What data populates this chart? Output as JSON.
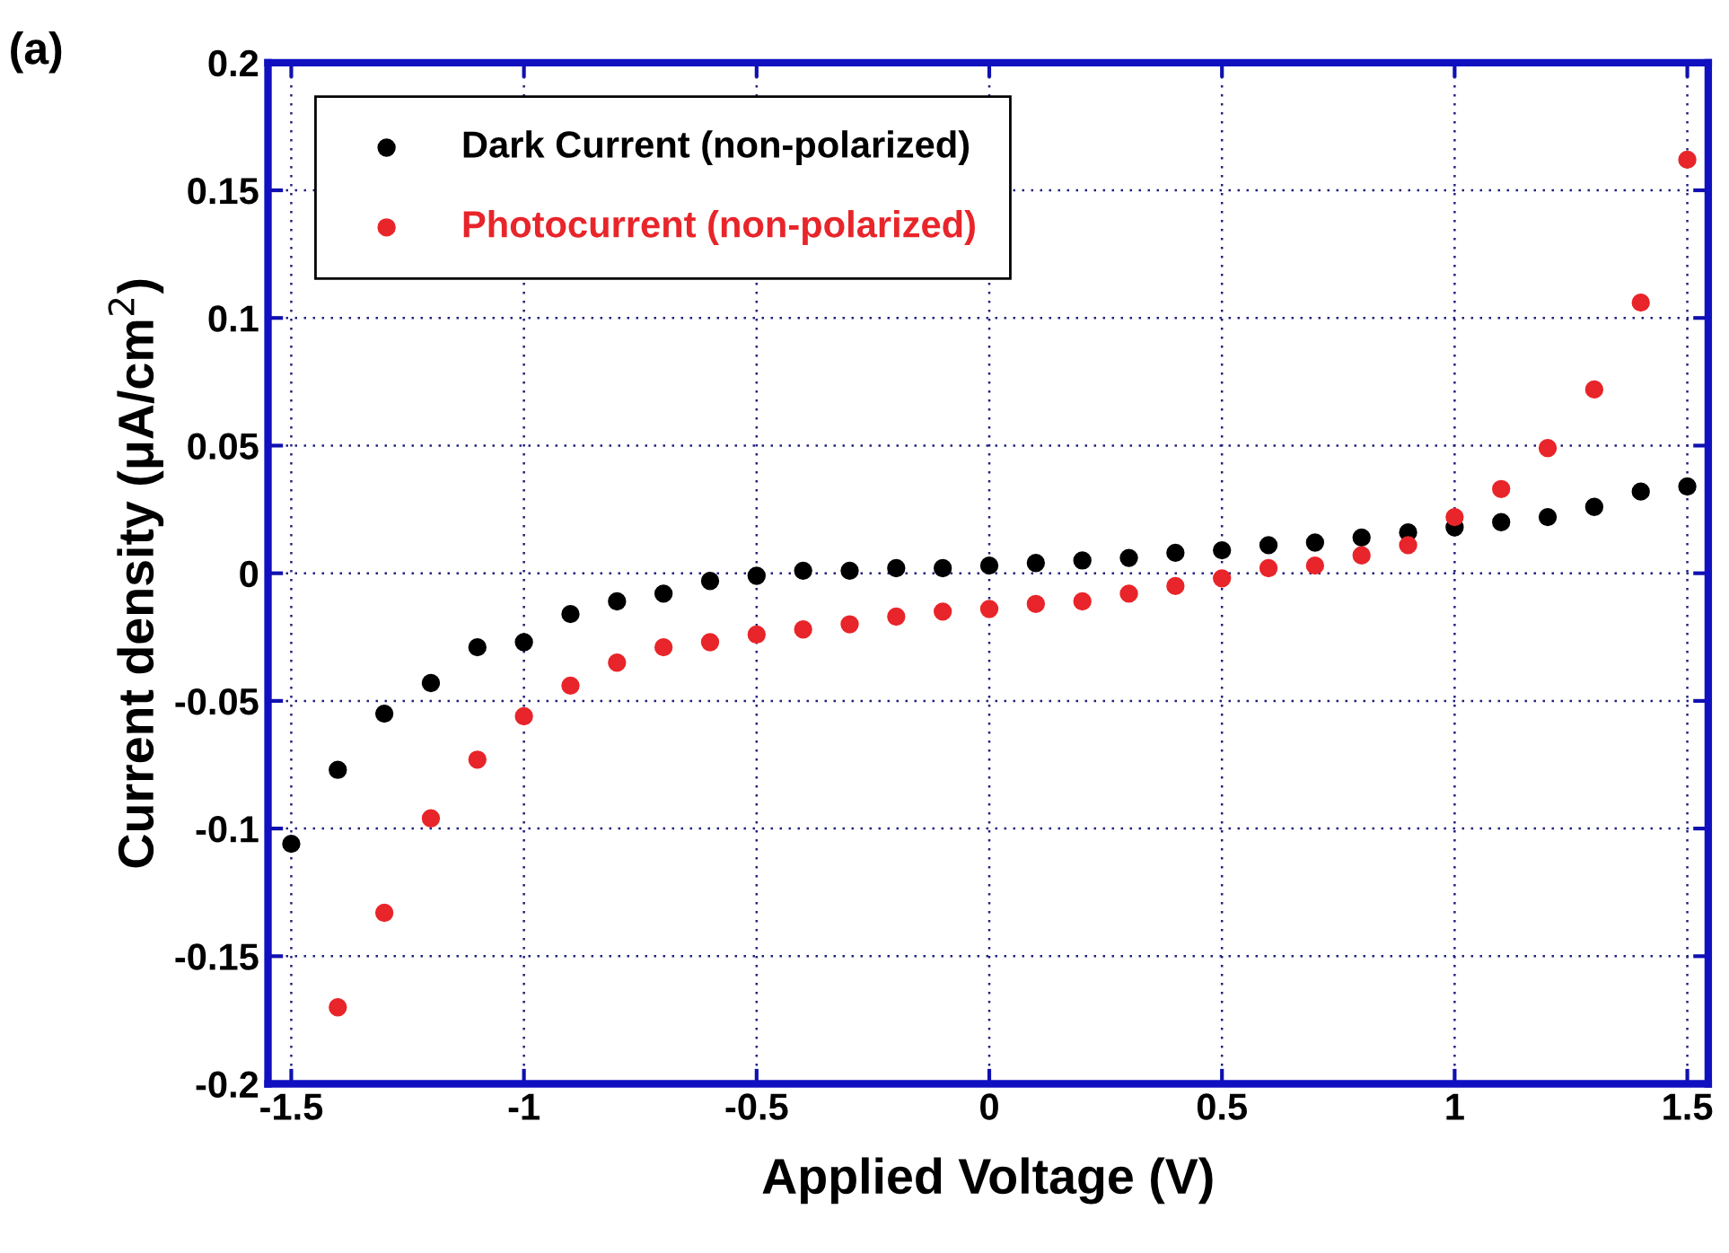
{
  "chart_data": {
    "type": "scatter",
    "xlabel": "Applied Voltage (V)",
    "ylabel": "Current density (μA/cm$^{2}$)",
    "annotations": [
      "(a)"
    ],
    "x": [
      -1.5,
      -1.4,
      -1.3,
      -1.2,
      -1.1,
      -1.0,
      -0.9,
      -0.8,
      -0.7,
      -0.6,
      -0.5,
      -0.4,
      -0.3,
      -0.2,
      -0.1,
      0,
      0.1,
      0.2,
      0.3,
      0.4,
      0.5,
      0.6,
      0.7,
      0.8,
      0.9,
      1.0,
      1.1,
      1.2,
      1.3,
      1.4,
      1.5
    ],
    "series": [
      {
        "name": "Dark Current (non-polarized)",
        "color": "#000000",
        "values": [
          -0.106,
          -0.077,
          -0.055,
          -0.043,
          -0.029,
          -0.027,
          -0.016,
          -0.011,
          -0.008,
          -0.003,
          -0.001,
          0.001,
          0.001,
          0.002,
          0.002,
          0.003,
          0.004,
          0.005,
          0.006,
          0.008,
          0.009,
          0.011,
          0.012,
          0.014,
          0.016,
          0.018,
          0.02,
          0.022,
          0.026,
          0.032,
          0.034
        ]
      },
      {
        "name": "Photocurrent (non-polarized)",
        "color": "#e8252a",
        "values": [
          null,
          -0.17,
          -0.133,
          -0.096,
          -0.073,
          -0.056,
          -0.044,
          -0.035,
          -0.029,
          -0.027,
          -0.024,
          -0.022,
          -0.02,
          -0.017,
          -0.015,
          -0.014,
          -0.012,
          -0.011,
          -0.008,
          -0.005,
          -0.002,
          0.002,
          0.003,
          0.007,
          0.011,
          0.022,
          0.033,
          0.049,
          0.072,
          0.106,
          0.162
        ]
      }
    ],
    "xlim": [
      -1.55,
      1.545
    ],
    "ylim": [
      -0.2,
      0.2
    ],
    "xticks": [
      -1.5,
      -1,
      -0.5,
      0,
      0.5,
      1,
      1.5
    ],
    "yticks": [
      -0.2,
      -0.15,
      -0.1,
      -0.05,
      0,
      0.05,
      0.1,
      0.15,
      0.2
    ],
    "grid": true,
    "legend": "top left",
    "marker": "circle"
  }
}
